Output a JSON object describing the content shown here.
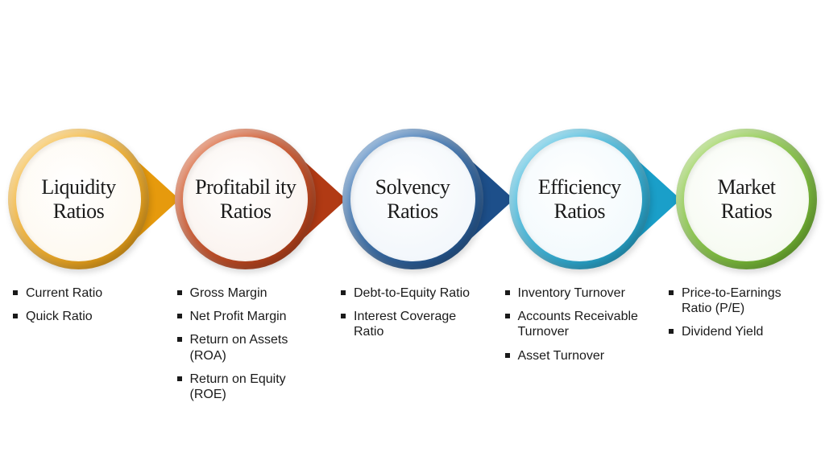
{
  "diagram": {
    "type": "flowchart",
    "background_color": "#ffffff",
    "title_fontsize": 26,
    "title_font_family": "serif-condensed",
    "item_fontsize": 16,
    "item_font_family": "sans-condensed",
    "item_color": "#1a1a1a",
    "bullet_shape": "square",
    "nodes": [
      {
        "label": "Liquidity Ratios",
        "ring_light": "#fcd070",
        "ring_dark": "#e69a0d",
        "pointer_color": "#e69a0d",
        "core_fill": "#fef7eb",
        "items": [
          "Current Ratio",
          "Quick Ratio"
        ]
      },
      {
        "label": "Profitabil ity Ratios",
        "ring_light": "#e87b4f",
        "ring_dark": "#b13a14",
        "pointer_color": "#b13a14",
        "core_fill": "#f9efe9",
        "items": [
          "Gross Margin",
          "Net Profit Margin",
          "Return on Assets (ROA)",
          "Return on Equity (ROE)"
        ]
      },
      {
        "label": "Solvency Ratios",
        "ring_light": "#6a9fd6",
        "ring_dark": "#1d4f8a",
        "pointer_color": "#1d4f8a",
        "core_fill": "#eef4fa",
        "items": [
          "Debt-to-Equity Ratio",
          "Interest Coverage Ratio"
        ]
      },
      {
        "label": "Efficiency Ratios",
        "ring_light": "#7fd4ec",
        "ring_dark": "#1a9fc9",
        "pointer_color": "#1a9fc9",
        "core_fill": "#eef8fc",
        "items": [
          "Inventory Turnover",
          "Accounts Receivable Turnover",
          "Asset Turnover"
        ]
      },
      {
        "label": "Market Ratios",
        "ring_light": "#b1df74",
        "ring_dark": "#6bb12a",
        "pointer_color": "#6bb12a",
        "core_fill": "#f3f9ec",
        "items": [
          "Price-to-Earnings Ratio (P/E)",
          "Dividend Yield"
        ]
      }
    ]
  }
}
